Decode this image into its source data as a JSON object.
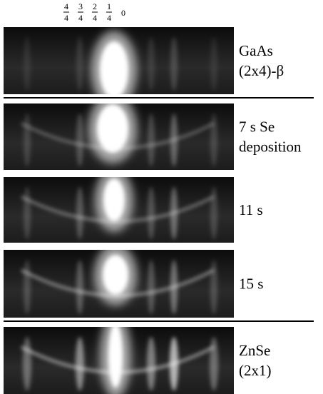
{
  "scale_labels": [
    {
      "numerator": "4",
      "denominator": "4"
    },
    {
      "numerator": "3",
      "denominator": "4"
    },
    {
      "numerator": "2",
      "denominator": "4"
    },
    {
      "numerator": "1",
      "denominator": "4"
    }
  ],
  "zero_label": "0",
  "panels": [
    {
      "lines": [
        "GaAs",
        "(2x4)-β"
      ]
    },
    {
      "lines": [
        "7 s Se",
        "deposition"
      ]
    },
    {
      "lines": [
        "11 s"
      ]
    },
    {
      "lines": [
        "15 s"
      ]
    },
    {
      "lines": [
        "ZnSe",
        "(2x1)"
      ]
    }
  ]
}
